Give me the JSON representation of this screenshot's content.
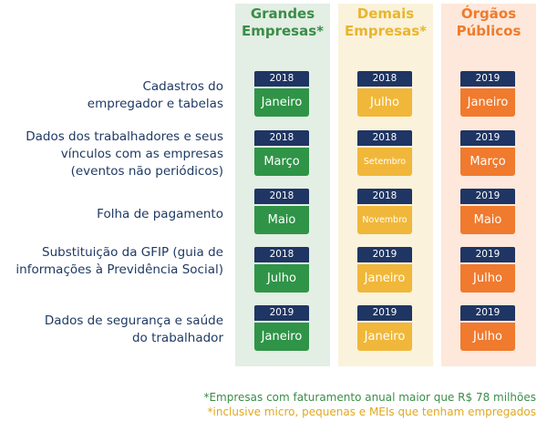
{
  "columns": [
    {
      "title_line1": "Grandes",
      "title_line2": "Empresas*",
      "color": "#3a8d48"
    },
    {
      "title_line1": "Demais",
      "title_line2": "Empresas*",
      "color": "#e9b52c"
    },
    {
      "title_line1": "Órgãos",
      "title_line2": "Públicos",
      "color": "#ef7b2a"
    }
  ],
  "rows": [
    {
      "label_lines": [
        "Cadastros do",
        "empregador e tabelas"
      ],
      "cells": [
        {
          "year": "2018",
          "month": "Janeiro"
        },
        {
          "year": "2018",
          "month": "Julho"
        },
        {
          "year": "2019",
          "month": "Janeiro"
        }
      ]
    },
    {
      "label_lines": [
        "Dados dos trabalhadores e seus",
        "vínculos com as empresas",
        "(eventos não periódicos)"
      ],
      "cells": [
        {
          "year": "2018",
          "month": "Março"
        },
        {
          "year": "2018",
          "month": "Setembro"
        },
        {
          "year": "2019",
          "month": "Março"
        }
      ]
    },
    {
      "label_lines": [
        "Folha de pagamento"
      ],
      "cells": [
        {
          "year": "2018",
          "month": "Maio"
        },
        {
          "year": "2018",
          "month": "Novembro"
        },
        {
          "year": "2019",
          "month": "Maio"
        }
      ]
    },
    {
      "label_lines": [
        "Substituição da GFIP (guia de",
        "informações à Previdência Social)"
      ],
      "cells": [
        {
          "year": "2018",
          "month": "Julho"
        },
        {
          "year": "2019",
          "month": "Janeiro"
        },
        {
          "year": "2019",
          "month": "Julho"
        }
      ]
    },
    {
      "label_lines": [
        "Dados de segurança e saúde",
        "do trabalhador"
      ],
      "cells": [
        {
          "year": "2019",
          "month": "Janeiro"
        },
        {
          "year": "2019",
          "month": "Janeiro"
        },
        {
          "year": "2019",
          "month": "Julho"
        }
      ]
    }
  ],
  "footnotes": {
    "line1": "*Empresas com faturamento anual maior que R$ 78 milhões",
    "line2": "*inclusive micro, pequenas e MEIs que tenham empregados"
  }
}
